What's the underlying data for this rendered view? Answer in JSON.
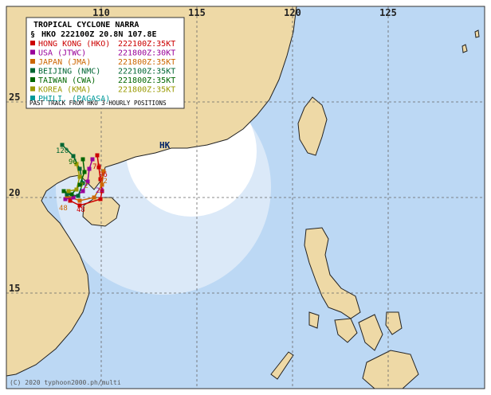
{
  "map": {
    "lon_ticks": [
      110,
      115,
      120,
      125
    ],
    "lat_ticks": [
      25,
      20,
      15
    ],
    "city": "HK",
    "legend": {
      "title": "TROPICAL CYCLONE NARRA",
      "position": "HKO 222100Z 20.8N 107.8E",
      "agencies": [
        {
          "name": "HONG KONG (HKO)",
          "info": "222100Z:35KT",
          "color": "#cc0000"
        },
        {
          "name": "USA (JTWC)",
          "info": "221800Z:30KT",
          "color": "#990099"
        },
        {
          "name": "JAPAN (JMA)",
          "info": "221800Z:35KT",
          "color": "#cc6600"
        },
        {
          "name": "BEIJING (NMC)",
          "info": "222100Z:35KT",
          "color": "#006633"
        },
        {
          "name": "TAIWAN (CWA)",
          "info": "221800Z:35KT",
          "color": "#006600"
        },
        {
          "name": "KOREA (KMA)",
          "info": "221800Z:35KT",
          "color": "#999900"
        },
        {
          "name": "PHILI. (PAGASA)",
          "info": "",
          "color": "#009999"
        }
      ],
      "note": "PAST TRACK FROM HKO 3-HOURLY POSITIONS"
    },
    "track_labels": [
      "120",
      "96",
      "72",
      "48",
      "48",
      "24",
      "12",
      "96",
      "72"
    ],
    "credit": "(C) 2020 typhoon2000.ph/multi"
  }
}
